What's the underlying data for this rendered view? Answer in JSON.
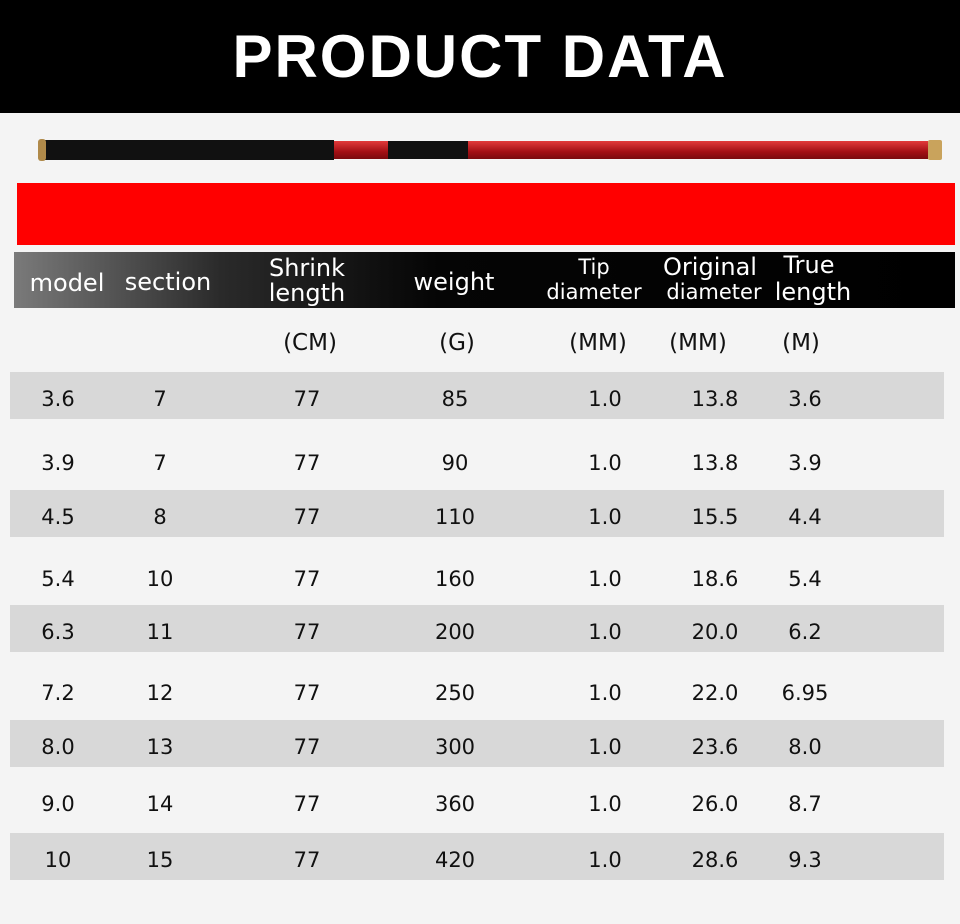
{
  "title": "PRODUCT DATA",
  "colors": {
    "banner": "#000000",
    "accent_bar": "#ff0000",
    "stripe": "#d8d8d8"
  },
  "headers": {
    "model": "model",
    "section": "section",
    "shrink_1": "Shrink",
    "shrink_2": "length",
    "weight": "weight",
    "tip_1": "Tip",
    "tip_2": "diameter",
    "orig_1": "Original",
    "orig_2": "diameter",
    "true_1": "True",
    "true_2": "length"
  },
  "units": {
    "shrink": "(CM)",
    "weight": "(G)",
    "tip": "(MM)",
    "orig": "(MM)",
    "true": "(M)"
  },
  "rows": [
    [
      "3.6",
      "7",
      "77",
      "85",
      "1.0",
      "13.8",
      "3.6"
    ],
    [
      "3.9",
      "7",
      "77",
      "90",
      "1.0",
      "13.8",
      "3.9"
    ],
    [
      "4.5",
      "8",
      "77",
      "110",
      "1.0",
      "15.5",
      "4.4"
    ],
    [
      "5.4",
      "10",
      "77",
      "160",
      "1.0",
      "18.6",
      "5.4"
    ],
    [
      "6.3",
      "11",
      "77",
      "200",
      "1.0",
      "20.0",
      "6.2"
    ],
    [
      "7.2",
      "12",
      "77",
      "250",
      "1.0",
      "22.0",
      "6.95"
    ],
    [
      "8.0",
      "13",
      "77",
      "300",
      "1.0",
      "23.6",
      "8.0"
    ],
    [
      "9.0",
      "14",
      "77",
      "360",
      "1.0",
      "26.0",
      "8.7"
    ],
    [
      "10",
      "15",
      "77",
      "420",
      "1.0",
      "28.6",
      "9.3"
    ]
  ]
}
